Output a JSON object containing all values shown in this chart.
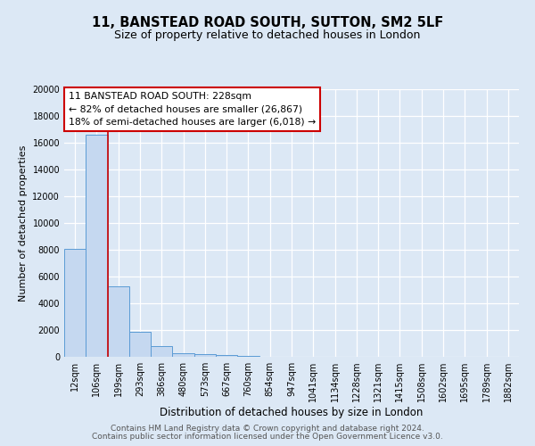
{
  "title": "11, BANSTEAD ROAD SOUTH, SUTTON, SM2 5LF",
  "subtitle": "Size of property relative to detached houses in London",
  "xlabel": "Distribution of detached houses by size in London",
  "ylabel": "Number of detached properties",
  "bin_labels": [
    "12sqm",
    "106sqm",
    "199sqm",
    "293sqm",
    "386sqm",
    "480sqm",
    "573sqm",
    "667sqm",
    "760sqm",
    "854sqm",
    "947sqm",
    "1041sqm",
    "1134sqm",
    "1228sqm",
    "1321sqm",
    "1415sqm",
    "1508sqm",
    "1602sqm",
    "1695sqm",
    "1789sqm",
    "1882sqm"
  ],
  "bar_values": [
    8100,
    16600,
    5300,
    1850,
    800,
    300,
    200,
    120,
    100,
    0,
    0,
    0,
    0,
    0,
    0,
    0,
    0,
    0,
    0,
    0,
    0
  ],
  "bar_color": "#c5d8f0",
  "bar_edge_color": "#5b9bd5",
  "red_line_color": "#cc0000",
  "red_line_x": 1.5,
  "annotation_line1": "11 BANSTEAD ROAD SOUTH: 228sqm",
  "annotation_line2": "← 82% of detached houses are smaller (26,867)",
  "annotation_line3": "18% of semi-detached houses are larger (6,018) →",
  "annotation_box_color": "#ffffff",
  "annotation_box_edge": "#cc0000",
  "ylim": [
    0,
    20000
  ],
  "yticks": [
    0,
    2000,
    4000,
    6000,
    8000,
    10000,
    12000,
    14000,
    16000,
    18000,
    20000
  ],
  "background_color": "#dce8f5",
  "plot_bg_color": "#dce8f5",
  "grid_color": "#ffffff",
  "title_fontsize": 10.5,
  "subtitle_fontsize": 9,
  "xlabel_fontsize": 8.5,
  "ylabel_fontsize": 8,
  "tick_fontsize": 7,
  "annot_fontsize": 7.8,
  "footer_fontsize": 6.5,
  "footer_line1": "Contains HM Land Registry data © Crown copyright and database right 2024.",
  "footer_line2": "Contains public sector information licensed under the Open Government Licence v3.0."
}
